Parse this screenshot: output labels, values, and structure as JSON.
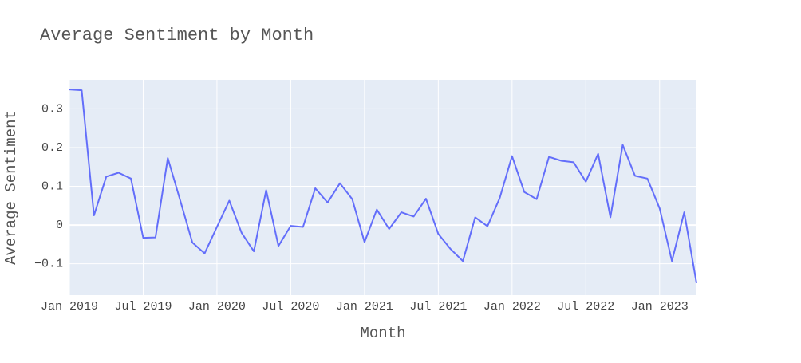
{
  "chart_data": {
    "type": "line",
    "title": "Average Sentiment by Month",
    "x_label": "Month",
    "y_label": "Average Sentiment",
    "x": [
      "2019-01",
      "2019-02",
      "2019-03",
      "2019-04",
      "2019-05",
      "2019-06",
      "2019-07",
      "2019-08",
      "2019-09",
      "2019-10",
      "2019-11",
      "2019-12",
      "2020-01",
      "2020-02",
      "2020-03",
      "2020-04",
      "2020-05",
      "2020-06",
      "2020-07",
      "2020-08",
      "2020-09",
      "2020-10",
      "2020-11",
      "2020-12",
      "2021-01",
      "2021-02",
      "2021-03",
      "2021-04",
      "2021-05",
      "2021-06",
      "2021-07",
      "2021-08",
      "2021-09",
      "2021-10",
      "2021-11",
      "2021-12",
      "2022-01",
      "2022-02",
      "2022-03",
      "2022-04",
      "2022-05",
      "2022-06",
      "2022-07",
      "2022-08",
      "2022-09",
      "2022-10",
      "2022-11",
      "2022-12",
      "2023-01",
      "2023-02",
      "2023-03",
      "2023-04"
    ],
    "series": [
      {
        "name": "Average Sentiment",
        "color": "#636efa",
        "values": [
          0.35,
          0.348,
          0.025,
          0.125,
          0.135,
          0.12,
          -0.033,
          -0.032,
          0.173,
          0.065,
          -0.045,
          -0.073,
          -0.005,
          0.063,
          -0.02,
          -0.068,
          0.09,
          -0.054,
          -0.002,
          -0.005,
          0.095,
          0.058,
          0.108,
          0.067,
          -0.044,
          0.04,
          -0.01,
          0.033,
          0.022,
          0.068,
          -0.023,
          -0.062,
          -0.093,
          0.02,
          -0.003,
          0.07,
          0.178,
          0.085,
          0.067,
          0.176,
          0.166,
          0.162,
          0.112,
          0.184,
          0.02,
          0.207,
          0.127,
          0.12,
          0.043,
          -0.093,
          0.033,
          -0.15
        ]
      }
    ],
    "xlim": [
      "2019-01",
      "2023-04"
    ],
    "xticks": [
      {
        "value": "2019-01",
        "label": "Jan 2019"
      },
      {
        "value": "2019-07",
        "label": "Jul 2019"
      },
      {
        "value": "2020-01",
        "label": "Jan 2020"
      },
      {
        "value": "2020-07",
        "label": "Jul 2020"
      },
      {
        "value": "2021-01",
        "label": "Jan 2021"
      },
      {
        "value": "2021-07",
        "label": "Jul 2021"
      },
      {
        "value": "2022-01",
        "label": "Jan 2022"
      },
      {
        "value": "2022-07",
        "label": "Jul 2022"
      },
      {
        "value": "2023-01",
        "label": "Jan 2023"
      }
    ],
    "ylim": [
      -0.181,
      0.375
    ],
    "yticks": [
      {
        "value": -0.1,
        "label": "−0.1"
      },
      0,
      0.1,
      0.2,
      0.3
    ],
    "grid": true,
    "background": "#e5ecf6"
  }
}
